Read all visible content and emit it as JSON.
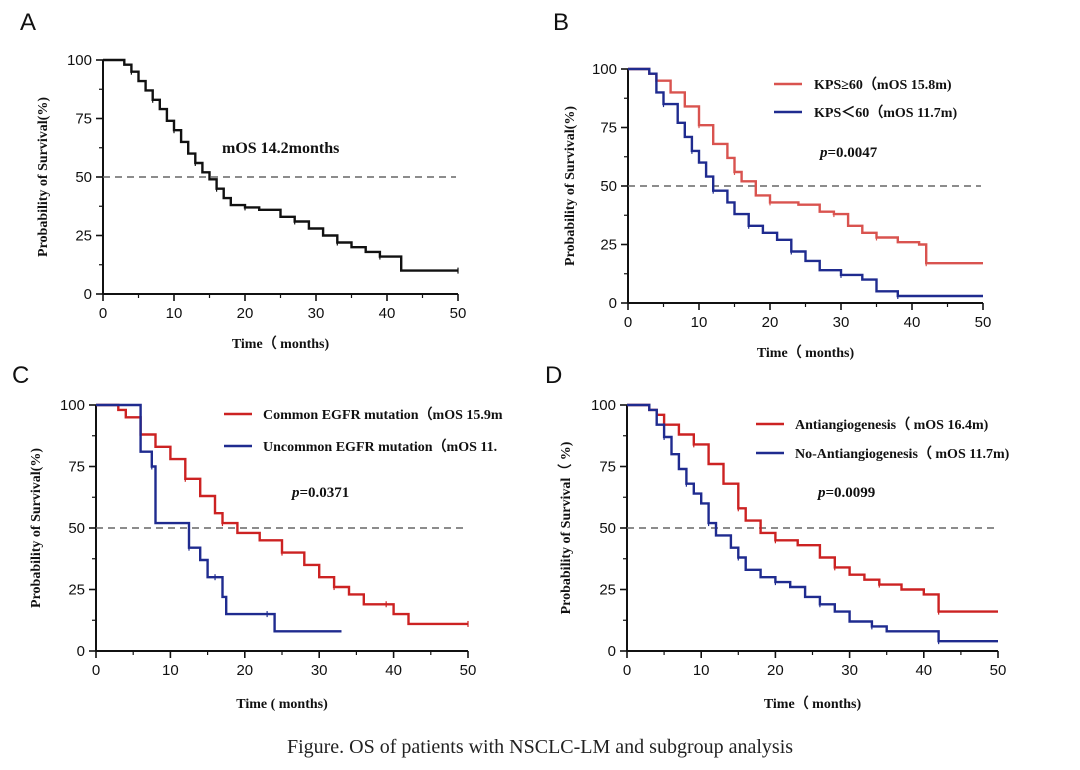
{
  "caption": "Figure. OS of patients with NSCLC-LM and subgroup analysis",
  "colors": {
    "black": "#111111",
    "red_light": "#d9534f",
    "red": "#cc2222",
    "blue": "#1f2b8f",
    "ref_line": "#666666"
  },
  "chart_data": [
    {
      "panel": "A",
      "type": "line",
      "xlabel": "Time（ months)",
      "ylabel": "Probability of Survival(%)",
      "xlim": [
        0,
        50
      ],
      "ylim": [
        0,
        100
      ],
      "xticks": [
        "0",
        "10",
        "20",
        "30",
        "40",
        "50"
      ],
      "yticks": [
        "0",
        "25",
        "50",
        "75",
        "100"
      ],
      "reference_line_y": 50,
      "annotation": "mOS 14.2months",
      "series": [
        {
          "name": "",
          "color": "#111111",
          "points": [
            [
              0,
              100
            ],
            [
              2,
              100
            ],
            [
              3,
              98
            ],
            [
              4,
              95
            ],
            [
              5,
              91
            ],
            [
              6,
              87
            ],
            [
              7,
              83
            ],
            [
              8,
              79
            ],
            [
              9,
              74
            ],
            [
              10,
              70
            ],
            [
              11,
              65
            ],
            [
              12,
              60
            ],
            [
              13,
              56
            ],
            [
              14,
              52
            ],
            [
              15,
              49
            ],
            [
              16,
              45
            ],
            [
              17,
              41
            ],
            [
              18,
              38
            ],
            [
              20,
              37
            ],
            [
              22,
              36
            ],
            [
              25,
              33
            ],
            [
              27,
              31
            ],
            [
              29,
              28
            ],
            [
              31,
              25
            ],
            [
              33,
              22
            ],
            [
              35,
              20
            ],
            [
              37,
              18
            ],
            [
              39,
              16
            ],
            [
              41,
              16
            ],
            [
              42,
              10
            ],
            [
              50,
              10
            ]
          ]
        }
      ]
    },
    {
      "panel": "B",
      "type": "line",
      "xlabel": "Time（ months)",
      "ylabel": "Probability of Survival(%)",
      "xlim": [
        0,
        50
      ],
      "ylim": [
        0,
        100
      ],
      "xticks": [
        "0",
        "10",
        "20",
        "30",
        "40",
        "50"
      ],
      "yticks": [
        "0",
        "25",
        "50",
        "75",
        "100"
      ],
      "reference_line_y": 50,
      "p_prefix": "p",
      "p_value": "=0.0047",
      "legend_position": "top-right",
      "series": [
        {
          "name": "KPS≥60（mOS 15.8m)",
          "color": "#d9534f",
          "points": [
            [
              0,
              100
            ],
            [
              2,
              100
            ],
            [
              3,
              98
            ],
            [
              4,
              95
            ],
            [
              6,
              90
            ],
            [
              8,
              84
            ],
            [
              10,
              76
            ],
            [
              12,
              68
            ],
            [
              14,
              62
            ],
            [
              15,
              56
            ],
            [
              16,
              52
            ],
            [
              18,
              46
            ],
            [
              20,
              43
            ],
            [
              24,
              42
            ],
            [
              27,
              39
            ],
            [
              29,
              38
            ],
            [
              31,
              33
            ],
            [
              33,
              30
            ],
            [
              35,
              28
            ],
            [
              38,
              26
            ],
            [
              41,
              25
            ],
            [
              42,
              17
            ],
            [
              50,
              17
            ]
          ]
        },
        {
          "name": "KPS＜60（mOS 11.7m)",
          "color": "#1f2b8f",
          "points": [
            [
              0,
              100
            ],
            [
              3,
              98
            ],
            [
              4,
              90
            ],
            [
              5,
              85
            ],
            [
              7,
              77
            ],
            [
              8,
              71
            ],
            [
              9,
              65
            ],
            [
              10,
              60
            ],
            [
              11,
              54
            ],
            [
              12,
              48
            ],
            [
              14,
              43
            ],
            [
              15,
              38
            ],
            [
              17,
              33
            ],
            [
              19,
              30
            ],
            [
              21,
              27
            ],
            [
              23,
              22
            ],
            [
              25,
              18
            ],
            [
              27,
              14
            ],
            [
              30,
              12
            ],
            [
              33,
              10
            ],
            [
              35,
              5
            ],
            [
              38,
              3
            ],
            [
              50,
              3
            ]
          ]
        }
      ]
    },
    {
      "panel": "C",
      "type": "line",
      "xlabel": "Time ( months)",
      "ylabel": "Probability of Survival(%)",
      "xlim": [
        0,
        50
      ],
      "ylim": [
        0,
        100
      ],
      "xticks": [
        "0",
        "10",
        "20",
        "30",
        "40",
        "50"
      ],
      "yticks": [
        "0",
        "25",
        "50",
        "75",
        "100"
      ],
      "reference_line_y": 50,
      "p_prefix": "p",
      "p_value": "=0.0371",
      "legend_position": "top-right",
      "series": [
        {
          "name": "Common EGFR mutation（mOS 15.9m",
          "color": "#cc2222",
          "points": [
            [
              0,
              100
            ],
            [
              3,
              98
            ],
            [
              4,
              95
            ],
            [
              6,
              88
            ],
            [
              8,
              83
            ],
            [
              10,
              78
            ],
            [
              12,
              70
            ],
            [
              14,
              63
            ],
            [
              16,
              56
            ],
            [
              17,
              52
            ],
            [
              19,
              48
            ],
            [
              22,
              45
            ],
            [
              25,
              40
            ],
            [
              28,
              35
            ],
            [
              30,
              30
            ],
            [
              32,
              26
            ],
            [
              34,
              23
            ],
            [
              36,
              19
            ],
            [
              39,
              19
            ],
            [
              40,
              15
            ],
            [
              42,
              11
            ],
            [
              50,
              11
            ]
          ]
        },
        {
          "name": "Uncommon EGFR mutation（mOS 11.",
          "color": "#1f2b8f",
          "points": [
            [
              0,
              100
            ],
            [
              5.5,
              100
            ],
            [
              6,
              81
            ],
            [
              7.5,
              75
            ],
            [
              8,
              52
            ],
            [
              12,
              52
            ],
            [
              12.5,
              42
            ],
            [
              14,
              37
            ],
            [
              15,
              30
            ],
            [
              16,
              30
            ],
            [
              17,
              22
            ],
            [
              17.5,
              15
            ],
            [
              23,
              15
            ],
            [
              24,
              8
            ],
            [
              33,
              8
            ]
          ]
        }
      ]
    },
    {
      "panel": "D",
      "type": "line",
      "xlabel": "Time（ months)",
      "ylabel": "Probability of Survival（ %)",
      "xlim": [
        0,
        50
      ],
      "ylim": [
        0,
        100
      ],
      "xticks": [
        "0",
        "10",
        "20",
        "30",
        "40",
        "50"
      ],
      "yticks": [
        "0",
        "25",
        "50",
        "75",
        "100"
      ],
      "reference_line_y": 50,
      "p_prefix": "p",
      "p_value": "=0.0099",
      "legend_position": "top-right",
      "series": [
        {
          "name": "Antiangiogenesis（ mOS 16.4m)",
          "color": "#cc2222",
          "points": [
            [
              0,
              100
            ],
            [
              2,
              100
            ],
            [
              3,
              98
            ],
            [
              4,
              96
            ],
            [
              5,
              92
            ],
            [
              7,
              88
            ],
            [
              9,
              84
            ],
            [
              11,
              76
            ],
            [
              13,
              68
            ],
            [
              15,
              58
            ],
            [
              16,
              53
            ],
            [
              18,
              48
            ],
            [
              20,
              45
            ],
            [
              23,
              43
            ],
            [
              26,
              38
            ],
            [
              28,
              34
            ],
            [
              30,
              31
            ],
            [
              32,
              29
            ],
            [
              34,
              27
            ],
            [
              37,
              25
            ],
            [
              40,
              23
            ],
            [
              42,
              16
            ],
            [
              50,
              16
            ]
          ]
        },
        {
          "name": "No-Antiangiogenesis（ mOS 11.7m)",
          "color": "#1f2b8f",
          "points": [
            [
              0,
              100
            ],
            [
              3,
              98
            ],
            [
              4,
              92
            ],
            [
              5,
              87
            ],
            [
              6,
              80
            ],
            [
              7,
              74
            ],
            [
              8,
              68
            ],
            [
              9,
              64
            ],
            [
              10,
              60
            ],
            [
              11,
              52
            ],
            [
              12,
              47
            ],
            [
              14,
              42
            ],
            [
              15,
              38
            ],
            [
              16,
              33
            ],
            [
              18,
              30
            ],
            [
              20,
              28
            ],
            [
              22,
              26
            ],
            [
              24,
              22
            ],
            [
              26,
              19
            ],
            [
              28,
              16
            ],
            [
              30,
              12
            ],
            [
              33,
              10
            ],
            [
              35,
              8
            ],
            [
              39,
              8
            ],
            [
              42,
              4
            ],
            [
              50,
              4
            ]
          ]
        }
      ]
    }
  ]
}
